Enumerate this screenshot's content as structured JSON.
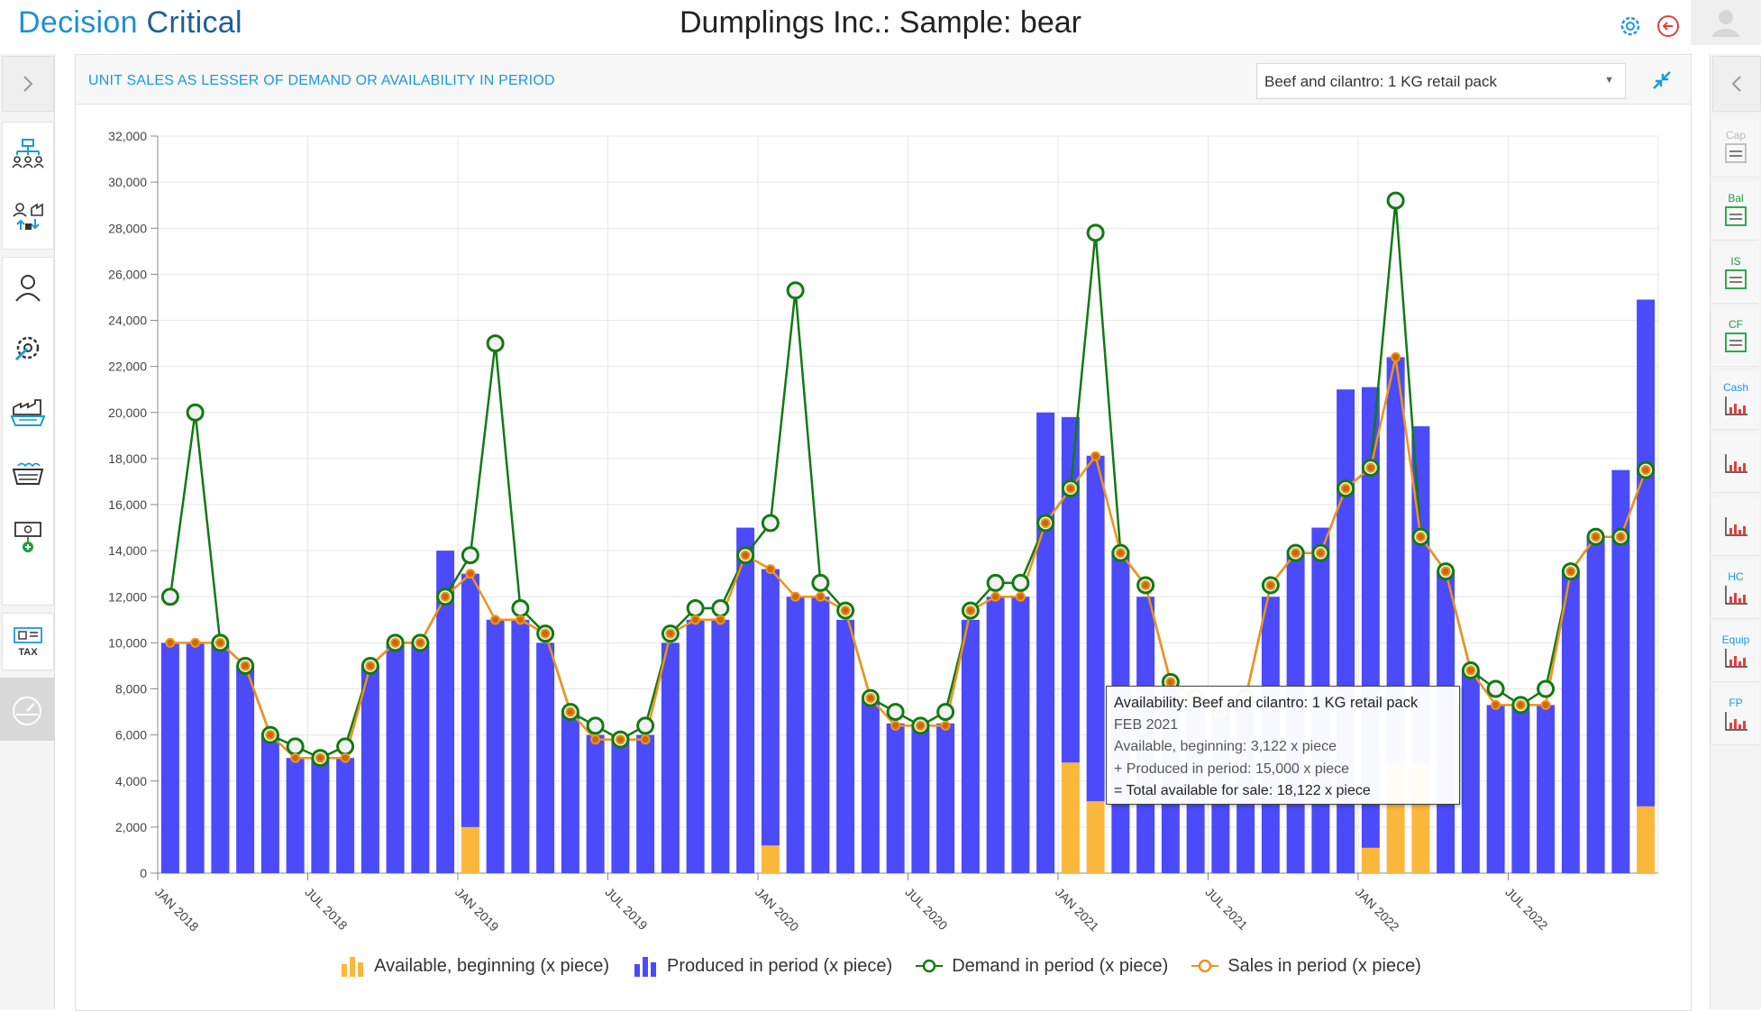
{
  "header": {
    "logo_part1": "Decision ",
    "logo_part2": "Critical",
    "title": "Dumplings Inc.: Sample: bear"
  },
  "panel": {
    "title": "UNIT SALES AS LESSER OF DEMAND OR AVAILABILITY IN PERIOD",
    "selected_product": "Beef and cilantro: 1 KG retail pack"
  },
  "left_sidebar": {
    "tax_label": "TAX"
  },
  "right_sidebar": {
    "items": [
      "Cap",
      "Bal",
      "IS",
      "CF",
      "Cash",
      "",
      "",
      "HC",
      "Equip",
      "FP"
    ]
  },
  "tooltip": {
    "title": "Availability: Beef and cilantro: 1 KG retail pack",
    "period": "FEB 2021",
    "line1": "Available, beginning: 3,122 x piece",
    "line2": "+ Produced in period: 15,000 x piece",
    "line3": "= Total available for sale: 18,122 x piece"
  },
  "colors": {
    "available": "#fbb73c",
    "produced": "#4b4bfb",
    "demand": "#117a11",
    "sales": "#f0921d",
    "accent": "#1a9bd7"
  },
  "chart_data": {
    "type": "bar+line",
    "title": "",
    "xlabel": "",
    "ylabel": "",
    "ylim": [
      0,
      32000
    ],
    "y_ticks": [
      "0",
      "2,000",
      "4,000",
      "6,000",
      "8,000",
      "10,000",
      "12,000",
      "14,000",
      "16,000",
      "18,000",
      "20,000",
      "22,000",
      "24,000",
      "26,000",
      "28,000",
      "30,000",
      "32,000"
    ],
    "x_tick_labels": [
      "JAN 2018",
      "JUL 2018",
      "JAN 2019",
      "JUL 2019",
      "JAN 2020",
      "JUL 2020",
      "JAN 2021",
      "JUL 2021",
      "JAN 2022",
      "JUL 2022"
    ],
    "months": [
      "Jan 2018",
      "Feb 2018",
      "Mar 2018",
      "Apr 2018",
      "May 2018",
      "Jun 2018",
      "Jul 2018",
      "Aug 2018",
      "Sep 2018",
      "Oct 2018",
      "Nov 2018",
      "Dec 2018",
      "Jan 2019",
      "Feb 2019",
      "Mar 2019",
      "Apr 2019",
      "May 2019",
      "Jun 2019",
      "Jul 2019",
      "Aug 2019",
      "Sep 2019",
      "Oct 2019",
      "Nov 2019",
      "Dec 2019",
      "Jan 2020",
      "Feb 2020",
      "Mar 2020",
      "Apr 2020",
      "May 2020",
      "Jun 2020",
      "Jul 2020",
      "Aug 2020",
      "Sep 2020",
      "Oct 2020",
      "Nov 2020",
      "Dec 2020",
      "Jan 2021",
      "Feb 2021",
      "Mar 2021",
      "Apr 2021",
      "May 2021",
      "Jun 2021",
      "Jul 2021",
      "Aug 2021",
      "Sep 2021",
      "Oct 2021",
      "Nov 2021",
      "Dec 2021",
      "Jan 2022",
      "Feb 2022",
      "Mar 2022",
      "Apr 2022",
      "May 2022",
      "Jun 2022",
      "Jul 2022",
      "Aug 2022",
      "Sep 2022",
      "Oct 2022",
      "Nov 2022",
      "Dec 2022"
    ],
    "series": [
      {
        "name": "Available, beginning (x piece)",
        "kind": "stacked-bar",
        "values": [
          0,
          0,
          0,
          0,
          0,
          0,
          0,
          0,
          0,
          0,
          0,
          0,
          2000,
          0,
          0,
          0,
          0,
          0,
          0,
          0,
          0,
          0,
          0,
          0,
          1200,
          0,
          0,
          0,
          0,
          0,
          0,
          0,
          0,
          0,
          0,
          0,
          4800,
          3122,
          0,
          0,
          0,
          0,
          0,
          0,
          0,
          0,
          0,
          0,
          1100,
          4800,
          4800,
          0,
          0,
          0,
          0,
          0,
          0,
          0,
          0,
          2900
        ]
      },
      {
        "name": "Produced in period (x piece)",
        "kind": "stacked-bar",
        "values": [
          10000,
          10000,
          10000,
          9000,
          6000,
          5000,
          5000,
          5000,
          9000,
          10000,
          10000,
          14000,
          11000,
          11000,
          11000,
          10000,
          7000,
          6000,
          6000,
          6000,
          10000,
          11000,
          11000,
          15000,
          12000,
          12000,
          12000,
          11000,
          7500,
          6500,
          6500,
          6500,
          11000,
          12000,
          12000,
          20000,
          15000,
          15000,
          14000,
          12000,
          8000,
          7500,
          7500,
          7500,
          12000,
          14000,
          15000,
          21000,
          20000,
          17600,
          14600,
          13100,
          8800,
          7300,
          7300,
          7300,
          13100,
          14600,
          17500,
          22000
        ]
      },
      {
        "name": "Demand in period (x piece)",
        "kind": "line",
        "values": [
          12000,
          20000,
          10000,
          9000,
          6000,
          5500,
          5000,
          5500,
          9000,
          10000,
          10000,
          12000,
          13800,
          23000,
          11500,
          10400,
          7000,
          6400,
          5800,
          6400,
          10400,
          11500,
          11500,
          13800,
          15200,
          25300,
          12600,
          11400,
          7600,
          7000,
          6400,
          7000,
          11400,
          12600,
          12600,
          15200,
          16700,
          27800,
          13900,
          12500,
          8300,
          7600,
          7000,
          7600,
          12500,
          13900,
          13900,
          16700,
          17600,
          29200,
          14600,
          13100,
          8800,
          8000,
          7300,
          8000,
          13100,
          14600,
          14600,
          17500
        ]
      },
      {
        "name": "Sales in period (x piece)",
        "kind": "line",
        "values": [
          10000,
          10000,
          10000,
          9000,
          6000,
          5000,
          5000,
          5000,
          9000,
          10000,
          10000,
          12000,
          13000,
          11000,
          11000,
          10400,
          7000,
          5800,
          5800,
          5800,
          10400,
          11000,
          11000,
          13800,
          13200,
          12000,
          12000,
          11400,
          7600,
          6400,
          6400,
          6400,
          11400,
          12000,
          12000,
          15200,
          16700,
          18100,
          13900,
          12500,
          8300,
          7600,
          7000,
          7600,
          12500,
          13900,
          13900,
          16700,
          17600,
          22400,
          14600,
          13100,
          8800,
          7300,
          7300,
          7300,
          13100,
          14600,
          14600,
          17500
        ]
      }
    ]
  },
  "legend": {
    "available": "Available, beginning (x piece)",
    "produced": "Produced in period (x piece)",
    "demand": "Demand in period (x piece)",
    "sales": "Sales in period (x piece)"
  }
}
